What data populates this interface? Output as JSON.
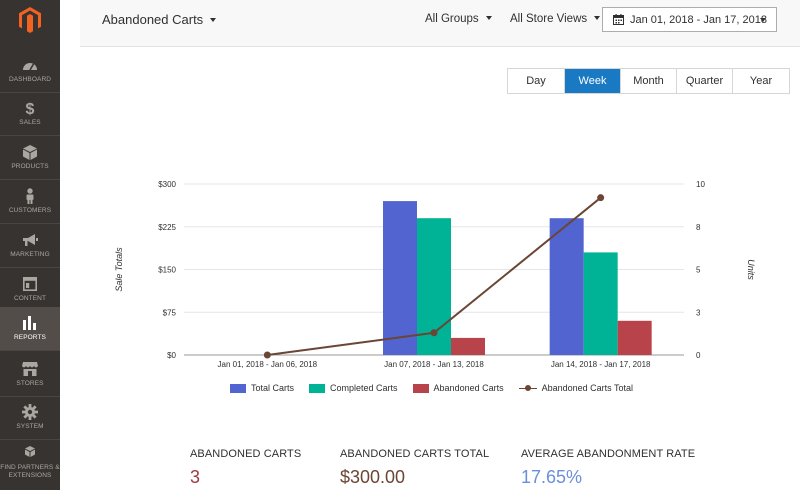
{
  "sidebar": {
    "items": [
      {
        "label": "DASHBOARD",
        "icon": "gauge-icon"
      },
      {
        "label": "SALES",
        "icon": "dollar-icon"
      },
      {
        "label": "PRODUCTS",
        "icon": "cube-icon"
      },
      {
        "label": "CUSTOMERS",
        "icon": "person-icon"
      },
      {
        "label": "MARKETING",
        "icon": "megaphone-icon"
      },
      {
        "label": "CONTENT",
        "icon": "layout-icon"
      },
      {
        "label": "REPORTS",
        "icon": "bar-chart-icon"
      },
      {
        "label": "STORES",
        "icon": "storefront-icon"
      },
      {
        "label": "SYSTEM",
        "icon": "gear-icon"
      },
      {
        "label": "FIND PARTNERS & EXTENSIONS",
        "icon": "boxes-icon"
      }
    ],
    "active_index": 6,
    "colors": {
      "background": "#373330",
      "active": "#524d49",
      "logo": "#f26322"
    }
  },
  "header": {
    "report": "Abandoned Carts",
    "group": "All Groups",
    "store": "All Store Views",
    "date_range": "Jan 01, 2018 - Jan 17, 2018"
  },
  "period_tabs": {
    "tabs": [
      "Day",
      "Week",
      "Month",
      "Quarter",
      "Year"
    ],
    "active": "Week"
  },
  "chart_data": {
    "type": "bar",
    "categories": [
      "Jan 01, 2018 - Jan 06, 2018",
      "Jan 07, 2018 - Jan 13, 2018",
      "Jan 14, 2018 - Jan 17, 2018"
    ],
    "series": [
      {
        "name": "Total Carts",
        "values": [
          0,
          270,
          240
        ],
        "color": "#5164d0",
        "axis": "left"
      },
      {
        "name": "Completed Carts",
        "values": [
          0,
          240,
          180
        ],
        "color": "#00b397",
        "axis": "left"
      },
      {
        "name": "Abandoned Carts",
        "values": [
          0,
          30,
          60
        ],
        "color": "#b9434b",
        "axis": "left"
      },
      {
        "name": "Abandoned Carts Total",
        "values": [
          0,
          1.3,
          9.2
        ],
        "color": "#6b4535",
        "axis": "right",
        "type": "line"
      }
    ],
    "ylabel": "Sale Totals",
    "y2label": "Units",
    "ylim": [
      0,
      300
    ],
    "y2lim": [
      0,
      10
    ],
    "yticks": [
      "$0",
      "$75",
      "$150",
      "$225",
      "$300"
    ],
    "y2ticks": [
      "0",
      "3",
      "5",
      "8",
      "10"
    ],
    "grid": true,
    "legend_placement": "bottom"
  },
  "totals": [
    {
      "label": "Abandoned Carts",
      "value": "3",
      "color": "#9e3a3f"
    },
    {
      "label": "Abandoned Carts Total",
      "value": "$300.00",
      "color": "#6b4535"
    },
    {
      "label": "Average Abandonment Rate",
      "value": "17.65%",
      "color": "#6b8fd8"
    }
  ]
}
